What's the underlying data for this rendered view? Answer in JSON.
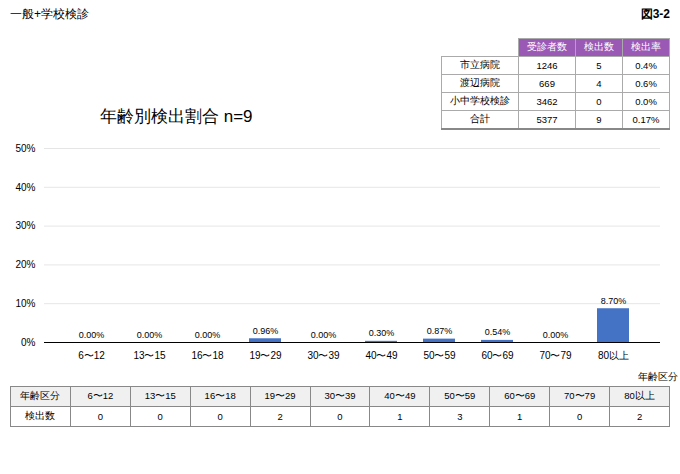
{
  "chart_data": {
    "type": "bar",
    "title": "年齢別検出割合  n=9",
    "annotations": [
      "一般+学校検診",
      "図3-2"
    ],
    "categories": [
      "6〜12",
      "13〜15",
      "16〜18",
      "19〜29",
      "30〜39",
      "40〜49",
      "50〜59",
      "60〜69",
      "70〜79",
      "80以上"
    ],
    "values": [
      0.0,
      0.0,
      0.0,
      0.96,
      0.0,
      0.3,
      0.87,
      0.54,
      0.0,
      8.7
    ],
    "value_labels": [
      "0.00%",
      "0.00%",
      "0.00%",
      "0.96%",
      "0.00%",
      "0.30%",
      "0.87%",
      "0.54%",
      "0.00%",
      "8.70%"
    ],
    "data_labels": true,
    "color": "#4472c4",
    "x_label": "年齢区分",
    "ylim": [
      0,
      50
    ],
    "yticks": [
      {
        "value": 0,
        "label": "0%"
      },
      {
        "value": 10,
        "label": "10%"
      },
      {
        "value": 20,
        "label": "20%"
      },
      {
        "value": 30,
        "label": "30%"
      },
      {
        "value": 40,
        "label": "40%"
      },
      {
        "value": 50,
        "label": "50%"
      }
    ],
    "grid": true,
    "info_table": {
      "header_color": "#9b59b6",
      "header_text_color": "#ffffff",
      "columns": [
        "受診者数",
        "検出数",
        "検出率"
      ],
      "rows": [
        [
          "市立病院",
          "1246",
          "5",
          "0.4%"
        ],
        [
          "渡辺病院",
          "669",
          "4",
          "0.6%"
        ],
        [
          "小中学校検診",
          "3462",
          "0",
          "0.0%"
        ],
        [
          "合計",
          "5377",
          "9",
          "0.17%"
        ]
      ]
    },
    "bottom_table": {
      "column_label": "年齢区分",
      "columns": [
        "6〜12",
        "13〜15",
        "16〜18",
        "19〜29",
        "30〜39",
        "40〜49",
        "50〜59",
        "60〜69",
        "70〜79",
        "80以上"
      ],
      "row_label": "検出数",
      "values": [
        0,
        0,
        0,
        2,
        0,
        1,
        3,
        1,
        0,
        2
      ]
    }
  }
}
